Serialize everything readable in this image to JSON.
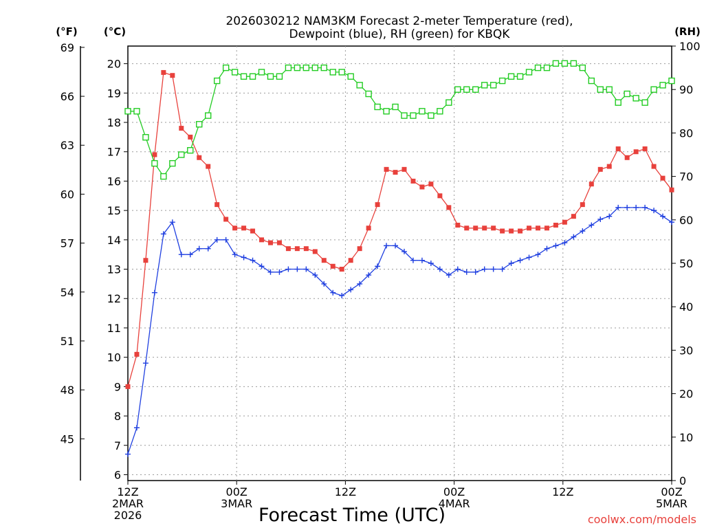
{
  "chart_data": {
    "type": "line",
    "title_lines": [
      "2026030212 NAM3KM Forecast 2-meter Temperature (red),",
      "Dewpoint (blue), RH (green) for KBQK"
    ],
    "xlabel": "Forecast Time (UTC)",
    "credit": "coolwx.com/models",
    "unit_labels": {
      "fahrenheit": "(°F)",
      "celsius": "(°C)",
      "rh": "(RH)"
    },
    "x_range_hours": [
      0,
      60
    ],
    "x_ticks": [
      {
        "hour": 0,
        "lines": [
          "12Z",
          "2MAR",
          "2026"
        ]
      },
      {
        "hour": 12,
        "lines": [
          "00Z",
          "3MAR"
        ]
      },
      {
        "hour": 24,
        "lines": [
          "12Z"
        ]
      },
      {
        "hour": 36,
        "lines": [
          "00Z",
          "4MAR"
        ]
      },
      {
        "hour": 48,
        "lines": [
          "12Z"
        ]
      },
      {
        "hour": 60,
        "lines": [
          "00Z",
          "5MAR"
        ]
      }
    ],
    "celsius_range": [
      5.8,
      20.6
    ],
    "celsius_ticks": [
      "6",
      "7",
      "8",
      "9",
      "10",
      "11",
      "12",
      "13",
      "14",
      "15",
      "16",
      "17",
      "18",
      "19",
      "20"
    ],
    "fahrenheit_ticks": [
      "45",
      "48",
      "51",
      "54",
      "57",
      "60",
      "63",
      "66",
      "69"
    ],
    "rh_range": [
      0,
      100
    ],
    "rh_ticks": [
      "0",
      "10",
      "20",
      "30",
      "40",
      "50",
      "60",
      "70",
      "80",
      "90",
      "100"
    ],
    "series": [
      {
        "name": "Temperature",
        "units": "°C",
        "color": "#e8413c",
        "marker": "filled-square",
        "values": [
          9.0,
          10.1,
          13.3,
          16.9,
          19.7,
          19.6,
          17.8,
          17.5,
          16.8,
          16.5,
          15.2,
          14.7,
          14.4,
          14.4,
          14.3,
          14.0,
          13.9,
          13.9,
          13.7,
          13.7,
          13.7,
          13.6,
          13.3,
          13.1,
          13.0,
          13.3,
          13.7,
          14.4,
          15.2,
          16.4,
          16.3,
          16.4,
          16.0,
          15.8,
          15.9,
          15.5,
          15.1,
          14.5,
          14.4,
          14.4,
          14.4,
          14.4,
          14.3,
          14.3,
          14.3,
          14.4,
          14.4,
          14.4,
          14.5,
          14.6,
          14.8,
          15.2,
          15.9,
          16.4,
          16.5,
          17.1,
          16.8,
          17.0,
          17.1,
          16.5,
          16.1,
          15.7
        ]
      },
      {
        "name": "Dewpoint",
        "units": "°C",
        "color": "#1f3fe0",
        "marker": "plus",
        "values": [
          6.7,
          7.6,
          9.8,
          12.2,
          14.2,
          14.6,
          13.5,
          13.5,
          13.7,
          13.7,
          14.0,
          14.0,
          13.5,
          13.4,
          13.3,
          13.1,
          12.9,
          12.9,
          13.0,
          13.0,
          13.0,
          12.8,
          12.5,
          12.2,
          12.1,
          12.3,
          12.5,
          12.8,
          13.1,
          13.8,
          13.8,
          13.6,
          13.3,
          13.3,
          13.2,
          13.0,
          12.8,
          13.0,
          12.9,
          12.9,
          13.0,
          13.0,
          13.0,
          13.2,
          13.3,
          13.4,
          13.5,
          13.7,
          13.8,
          13.9,
          14.1,
          14.3,
          14.5,
          14.7,
          14.8,
          15.1,
          15.1,
          15.1,
          15.1,
          15.0,
          14.8,
          14.6
        ]
      },
      {
        "name": "RH",
        "units": "%",
        "color": "#22cc22",
        "marker": "open-square",
        "values": [
          85,
          85,
          79,
          73,
          70,
          73,
          75,
          76,
          82,
          84,
          92,
          95,
          94,
          93,
          93,
          94,
          93,
          93,
          95,
          95,
          95,
          95,
          95,
          94,
          94,
          93,
          91,
          89,
          86,
          85,
          86,
          84,
          84,
          85,
          84,
          85,
          87,
          90,
          90,
          90,
          91,
          91,
          92,
          93,
          93,
          94,
          95,
          95,
          96,
          96,
          96,
          95,
          92,
          90,
          90,
          87,
          89,
          88,
          87,
          90,
          91,
          92
        ]
      }
    ]
  }
}
